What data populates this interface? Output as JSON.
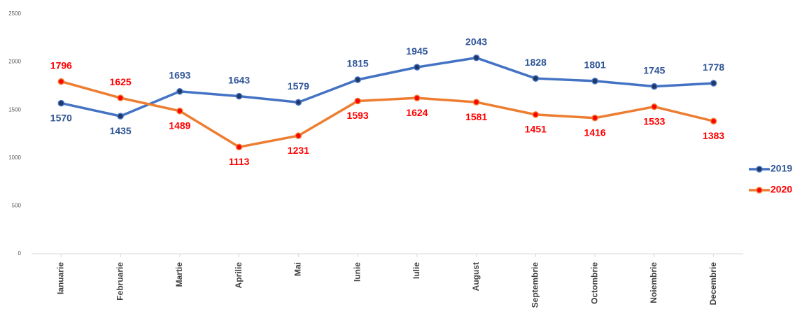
{
  "chart_data": {
    "type": "line",
    "categories": [
      "Ianuarie",
      "Februarie",
      "Martie",
      "Aprilie",
      "Mai",
      "Iunie",
      "Iulie",
      "August",
      "Septembrie",
      "Octombrie",
      "Noiembrie",
      "Decembrie"
    ],
    "series": [
      {
        "name": "2019",
        "color": "#4472c4",
        "marker_color": "#1f3864",
        "label_color": "#2f5597",
        "values": [
          1570,
          1435,
          1693,
          1643,
          1579,
          1815,
          1945,
          2043,
          1828,
          1801,
          1745,
          1778
        ]
      },
      {
        "name": "2020",
        "color": "#ed7d31",
        "marker_color": "#ff0000",
        "label_color": "#ff0000",
        "values": [
          1796,
          1625,
          1489,
          1113,
          1231,
          1593,
          1624,
          1581,
          1451,
          1416,
          1533,
          1383
        ]
      }
    ],
    "ylim": [
      0,
      2500
    ],
    "yticks": [
      0,
      500,
      1000,
      1500,
      2000,
      2500
    ],
    "grid": false,
    "legend": "right"
  }
}
